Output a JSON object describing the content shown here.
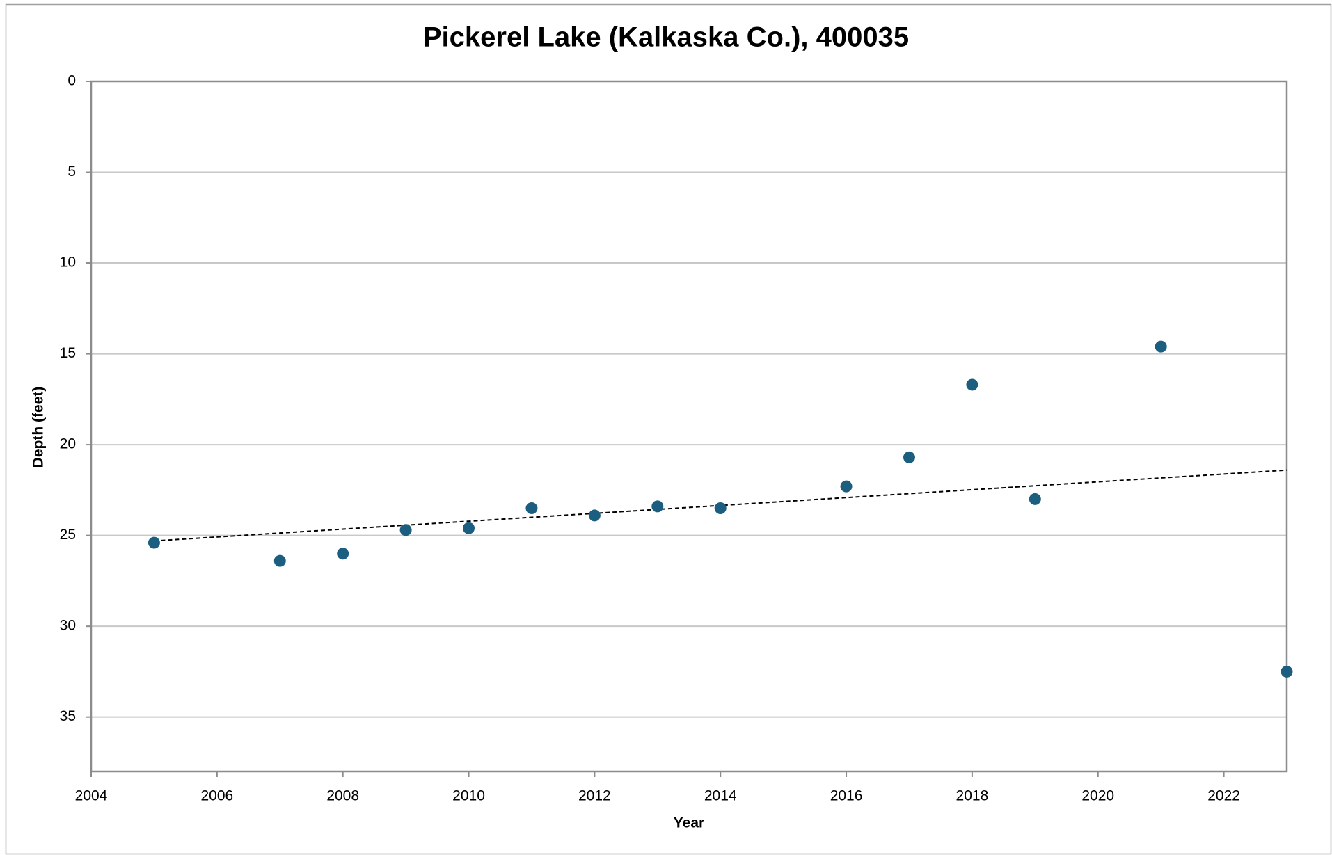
{
  "chart_data": {
    "type": "scatter",
    "title": "Pickerel Lake (Kalkaska Co.), 400035",
    "x_label": "Year",
    "y_label": "Depth (feet)",
    "x": [
      2005,
      2007,
      2008,
      2009,
      2010,
      2011,
      2012,
      2013,
      2014,
      2016,
      2017,
      2018,
      2019,
      2021,
      2023
    ],
    "values": [
      25.4,
      26.4,
      26.0,
      24.7,
      24.6,
      23.5,
      23.9,
      23.4,
      23.5,
      22.3,
      20.7,
      16.7,
      23.0,
      14.6,
      32.5
    ],
    "color": "#1b5e7f",
    "trendline": {
      "x": [
        2005,
        2023
      ],
      "values": [
        25.3,
        21.4
      ],
      "color": "#000000"
    },
    "xlim": [
      2004,
      2023
    ],
    "xticks": [
      2004,
      2006,
      2008,
      2010,
      2012,
      2014,
      2016,
      2018,
      2020,
      2022
    ],
    "ylim": [
      0,
      38
    ],
    "yticks": [
      0,
      5,
      10,
      15,
      20,
      25,
      30,
      35
    ],
    "y_inverted": true,
    "grid": true
  }
}
